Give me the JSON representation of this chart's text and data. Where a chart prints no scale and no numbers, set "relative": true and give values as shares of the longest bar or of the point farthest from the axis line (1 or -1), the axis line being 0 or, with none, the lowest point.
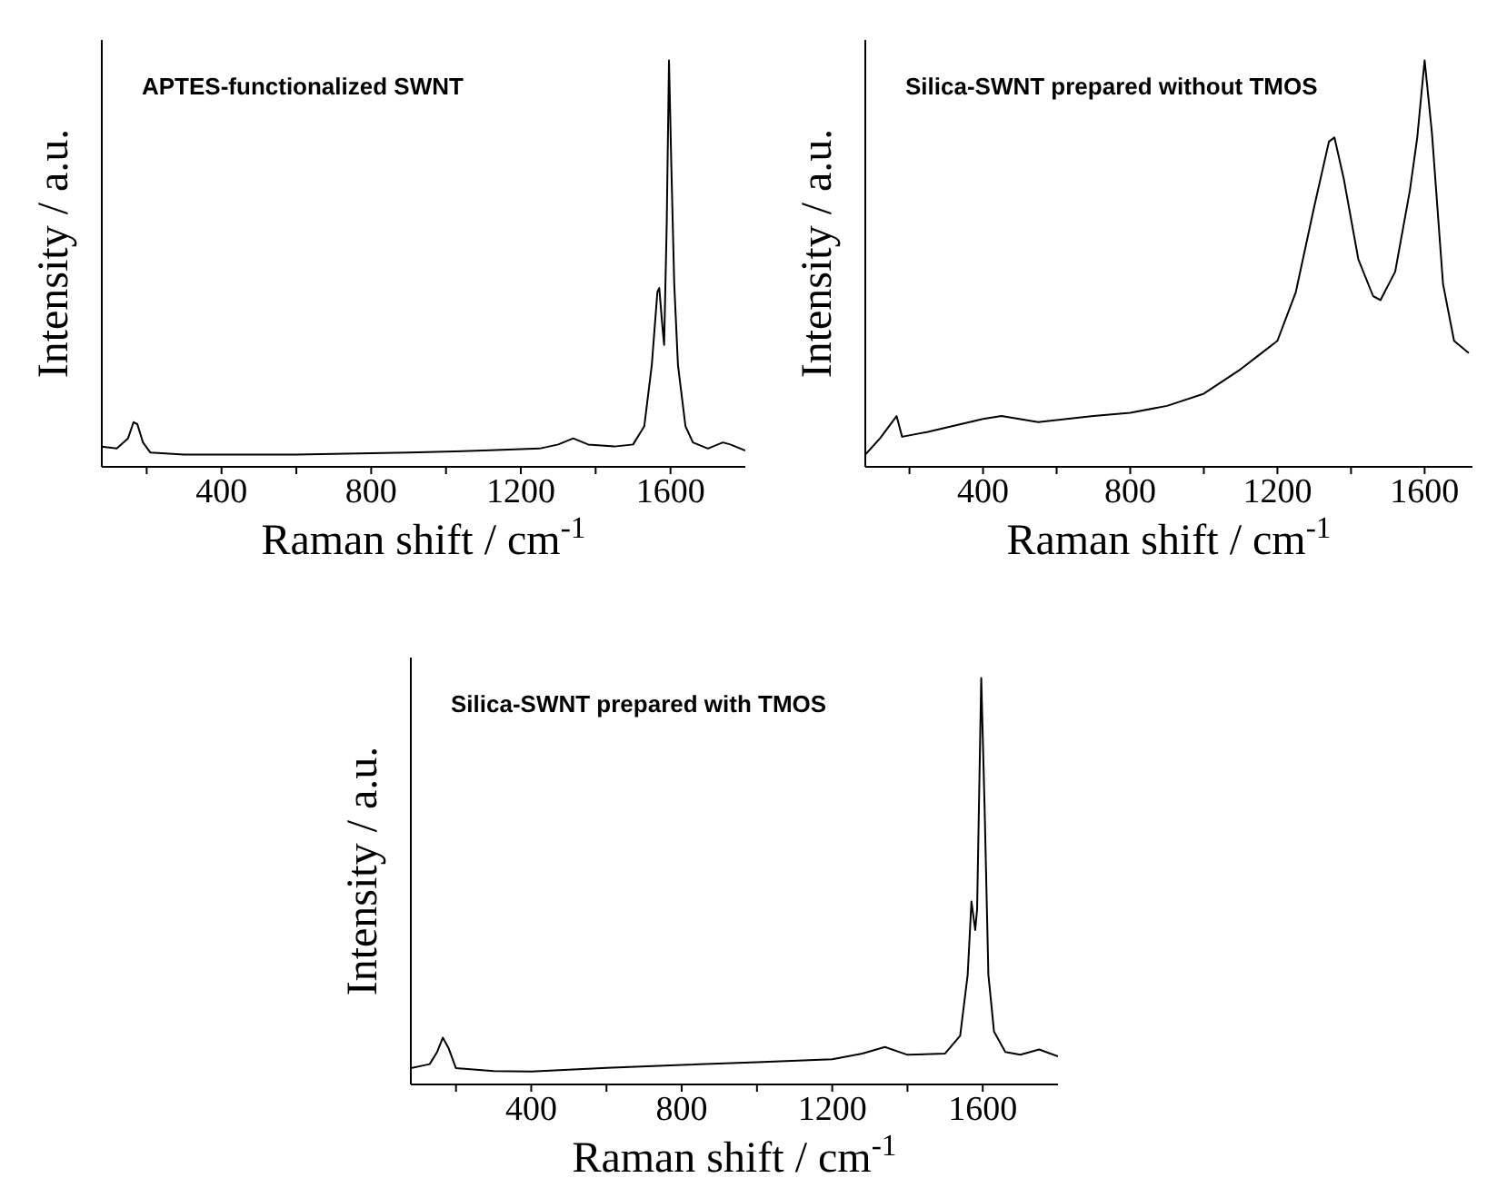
{
  "chart_data": [
    {
      "type": "line",
      "title": "APTES-functionalized SWNT",
      "xlabel": "Raman shift / cm$^{-1}$",
      "ylabel": "Intensity / a.u.",
      "relative": true,
      "xlim": [
        80,
        1800
      ],
      "xticks": [
        {
          "value": 200,
          "label": null
        },
        400,
        {
          "value": 600,
          "label": null
        },
        800,
        {
          "value": 1000,
          "label": null
        },
        1200,
        {
          "value": 1400,
          "label": null
        },
        1600
      ],
      "marker": "none",
      "x": [
        80,
        120,
        150,
        165,
        175,
        190,
        210,
        300,
        600,
        900,
        1100,
        1250,
        1300,
        1340,
        1380,
        1450,
        1500,
        1530,
        1550,
        1565,
        1570,
        1578,
        1583,
        1590,
        1596,
        1602,
        1610,
        1620,
        1640,
        1660,
        1700,
        1740,
        1760,
        1800
      ],
      "series": [
        {
          "color": "#000000",
          "values": [
            0.05,
            0.045,
            0.07,
            0.11,
            0.105,
            0.06,
            0.035,
            0.03,
            0.03,
            0.035,
            0.04,
            0.045,
            0.055,
            0.07,
            0.055,
            0.05,
            0.055,
            0.1,
            0.25,
            0.43,
            0.44,
            0.35,
            0.3,
            0.6,
            1.0,
            0.75,
            0.45,
            0.25,
            0.1,
            0.06,
            0.045,
            0.06,
            0.055,
            0.04
          ]
        }
      ]
    },
    {
      "type": "line",
      "title": "Silica-SWNT prepared without TMOS",
      "xlabel": "Raman shift / cm$^{-1}$",
      "ylabel": "Intensity / a.u.",
      "relative": true,
      "xlim": [
        80,
        1730
      ],
      "xticks": [
        {
          "value": 200,
          "label": null
        },
        400,
        {
          "value": 600,
          "label": null
        },
        800,
        {
          "value": 1000,
          "label": null
        },
        1200,
        {
          "value": 1400,
          "label": null
        },
        1600
      ],
      "marker": "none",
      "x": [
        80,
        120,
        165,
        180,
        250,
        400,
        450,
        550,
        700,
        800,
        900,
        1000,
        1100,
        1150,
        1200,
        1250,
        1300,
        1340,
        1355,
        1380,
        1420,
        1460,
        1480,
        1520,
        1560,
        1580,
        1600,
        1620,
        1650,
        1680,
        1720
      ],
      "series": [
        {
          "color": "#000000",
          "values": [
            0.03,
            0.07,
            0.125,
            0.074,
            0.086,
            0.118,
            0.125,
            0.11,
            0.125,
            0.133,
            0.15,
            0.18,
            0.24,
            0.275,
            0.31,
            0.43,
            0.64,
            0.8,
            0.81,
            0.71,
            0.51,
            0.42,
            0.41,
            0.48,
            0.68,
            0.81,
            1.0,
            0.82,
            0.45,
            0.31,
            0.28
          ]
        }
      ]
    },
    {
      "type": "line",
      "title": "Silica-SWNT prepared with TMOS",
      "xlabel": "Raman shift / cm$^{-1}$",
      "ylabel": "Intensity / a.u.",
      "relative": true,
      "xlim": [
        80,
        1800
      ],
      "xticks": [
        {
          "value": 200,
          "label": null
        },
        400,
        {
          "value": 600,
          "label": null
        },
        800,
        {
          "value": 1000,
          "label": null
        },
        1200,
        {
          "value": 1400,
          "label": null
        },
        1600
      ],
      "marker": "none",
      "x": [
        80,
        130,
        150,
        165,
        180,
        200,
        300,
        400,
        600,
        800,
        1000,
        1200,
        1280,
        1340,
        1400,
        1500,
        1540,
        1560,
        1570,
        1580,
        1585,
        1596,
        1605,
        1615,
        1630,
        1660,
        1700,
        1750,
        1800
      ],
      "series": [
        {
          "color": "#000000",
          "values": [
            0.04,
            0.05,
            0.08,
            0.115,
            0.09,
            0.04,
            0.033,
            0.032,
            0.041,
            0.048,
            0.055,
            0.062,
            0.076,
            0.092,
            0.073,
            0.076,
            0.12,
            0.27,
            0.45,
            0.38,
            0.43,
            1.0,
            0.68,
            0.27,
            0.13,
            0.08,
            0.073,
            0.086,
            0.069
          ]
        }
      ]
    }
  ]
}
